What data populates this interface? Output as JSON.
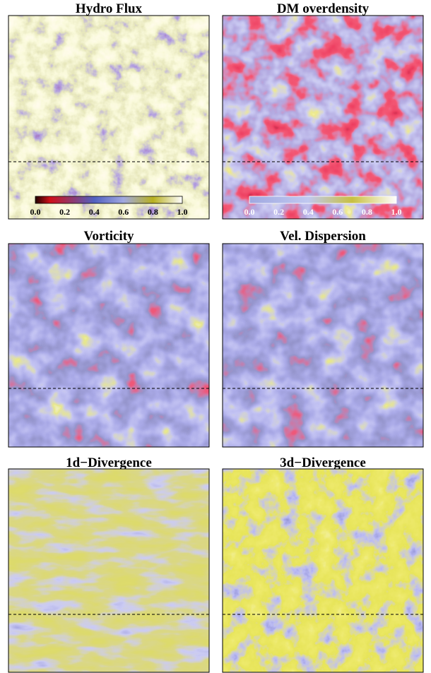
{
  "panels": [
    {
      "title": "Hydro Flux"
    },
    {
      "title": "DM overdensity"
    },
    {
      "title": "Vorticity"
    },
    {
      "title": "Vel. Dispersion"
    },
    {
      "title": "1d−Divergence"
    },
    {
      "title": "3d−Divergence"
    }
  ],
  "colorbars": [
    {
      "ticks": [
        "0.0",
        "0.2",
        "0.4",
        "0.6",
        "0.8",
        "1.0"
      ]
    },
    {
      "ticks": [
        "0.0",
        "0.2",
        "0.4",
        "0.6",
        "0.8",
        "1.0"
      ]
    }
  ]
}
